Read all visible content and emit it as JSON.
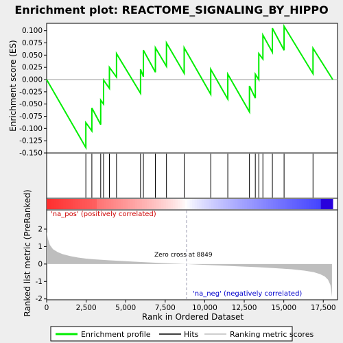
{
  "title": "Enrichment plot: REACTOME_SIGNALING_BY_HIPPO",
  "colors": {
    "background": "#eeeeee",
    "panel": "#ffffff",
    "enrichment_line": "#00ee00",
    "hits": "#000000",
    "metric_fill": "#bebebe",
    "pos_label": "#cc0000",
    "neg_label": "#0000cc",
    "zero_cross_line": "#a0a0b4"
  },
  "legend": {
    "items": [
      {
        "label": "Enrichment profile",
        "color": "#00ee00"
      },
      {
        "label": "Hits",
        "color": "#000000"
      },
      {
        "label": "Ranking metric scores",
        "color": "#bebebe"
      }
    ]
  },
  "annotations": {
    "pos_label": "'na_pos' (positively correlated)",
    "neg_label": "'na_neg' (negatively correlated)",
    "zero_cross": "Zero cross at 8849"
  },
  "chart_data": {
    "type": "line",
    "xlabel": "Rank in Ordered Dataset",
    "xlim": [
      0,
      18400
    ],
    "xticks": [
      0,
      2500,
      5000,
      7500,
      10000,
      12500,
      15000,
      17500
    ],
    "xtick_labels": [
      "0",
      "2,500",
      "5,000",
      "7,500",
      "10,000",
      "12,500",
      "15,000",
      "17,500"
    ],
    "n_genes": 18100,
    "zero_cross": 8849,
    "enrichment": {
      "ylabel": "Enrichment score (ES)",
      "ylim": [
        -0.15,
        0.115
      ],
      "yticks": [
        0.1,
        0.075,
        0.05,
        0.025,
        0.0,
        -0.025,
        -0.05,
        -0.075,
        -0.1,
        -0.125,
        -0.15
      ],
      "ytick_labels": [
        "0.100",
        "0.075",
        "0.050",
        "0.025",
        "0.000",
        "-0.025",
        "-0.050",
        "-0.075",
        "-0.100",
        "-0.125",
        "-0.150"
      ],
      "hits": [
        2480,
        2860,
        3420,
        3600,
        3970,
        4420,
        5940,
        6120,
        6880,
        7580,
        8700,
        10380,
        11460,
        12830,
        13200,
        13420,
        13680,
        14280,
        15020,
        16850
      ],
      "profile_x": [
        0,
        2480,
        2480,
        2860,
        2860,
        3420,
        3420,
        3600,
        3600,
        3970,
        3970,
        4420,
        4420,
        5940,
        5940,
        6120,
        6120,
        6880,
        6880,
        7580,
        7580,
        8700,
        8700,
        10380,
        10380,
        11460,
        11460,
        12830,
        12830,
        13200,
        13200,
        13420,
        13420,
        13680,
        13680,
        14280,
        14280,
        15020,
        15020,
        16850,
        16850,
        18100
      ],
      "profile_y": [
        0.0,
        -0.139,
        -0.088,
        -0.105,
        -0.058,
        -0.092,
        -0.042,
        -0.05,
        -0.001,
        -0.018,
        0.025,
        0.005,
        0.053,
        -0.028,
        0.021,
        0.006,
        0.06,
        0.015,
        0.065,
        0.027,
        0.075,
        0.013,
        0.065,
        -0.03,
        0.021,
        -0.04,
        0.011,
        -0.066,
        -0.013,
        -0.038,
        0.011,
        0.0,
        0.053,
        0.042,
        0.091,
        0.056,
        0.105,
        0.06,
        0.109,
        0.012,
        0.064,
        0.0
      ]
    },
    "metric": {
      "ylabel": "Ranked list metric (PreRanked)",
      "ylim": [
        -2.05,
        3.1
      ],
      "yticks": [
        2,
        1,
        0,
        -1,
        -2
      ],
      "ytick_labels": [
        "2",
        "1",
        "0",
        "-1",
        "-2"
      ],
      "x": [
        0,
        80,
        200,
        400,
        700,
        1000,
        1500,
        2000,
        2500,
        3000,
        4000,
        5000,
        6000,
        7000,
        8000,
        8849,
        9500,
        10500,
        11500,
        12500,
        13500,
        14500,
        15500,
        16300,
        16900,
        17300,
        17600,
        17800,
        17950,
        18000,
        18050
      ],
      "y": [
        1.85,
        1.45,
        1.1,
        0.85,
        0.68,
        0.57,
        0.45,
        0.37,
        0.31,
        0.27,
        0.21,
        0.16,
        0.11,
        0.07,
        0.03,
        0.0,
        -0.03,
        -0.07,
        -0.11,
        -0.15,
        -0.19,
        -0.24,
        -0.3,
        -0.38,
        -0.47,
        -0.58,
        -0.72,
        -0.9,
        -1.2,
        -1.5,
        -1.9
      ]
    }
  }
}
